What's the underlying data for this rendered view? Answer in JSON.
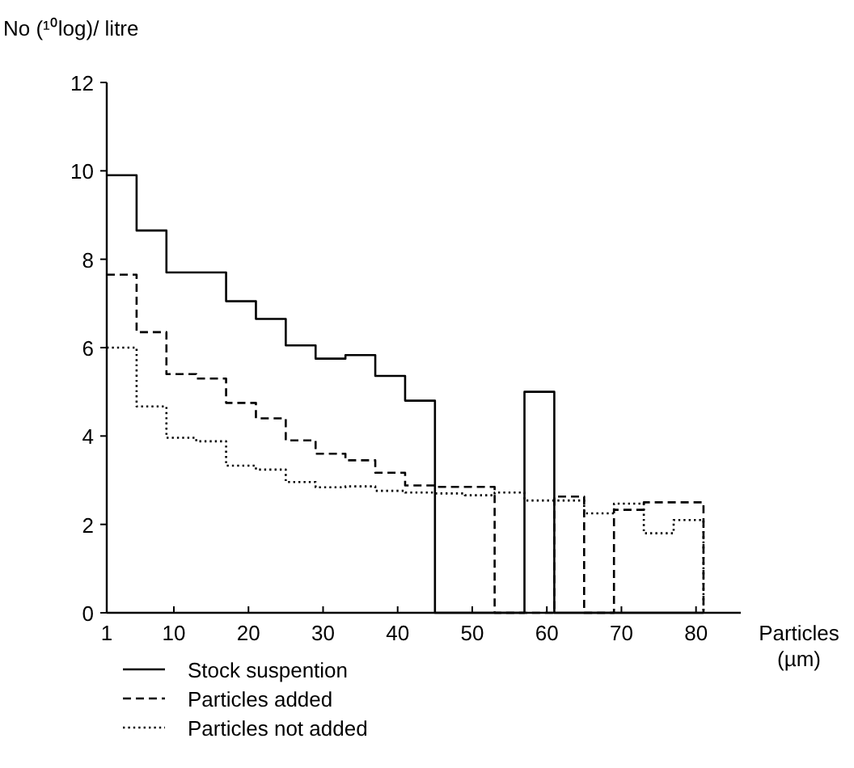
{
  "chart_data": {
    "type": "step",
    "ylabel": "No (¹⁰log)/ litre",
    "xlabel": "Particles (µm)",
    "x": [
      1,
      5,
      9,
      13,
      17,
      21,
      25,
      29,
      33,
      37,
      41,
      45,
      49,
      53,
      57,
      61,
      65,
      69,
      73,
      77,
      81
    ],
    "series": [
      {
        "name": "Stock suspention",
        "color": "#000000",
        "line_style": "solid",
        "values": [
          9.9,
          8.65,
          7.7,
          7.7,
          7.05,
          6.65,
          6.05,
          5.75,
          5.83,
          5.36,
          4.8,
          0,
          0,
          0,
          5.0,
          0,
          0,
          0,
          0,
          0,
          0
        ]
      },
      {
        "name": "Particles added",
        "color": "#000000",
        "line_style": "dashed",
        "values": [
          7.65,
          6.35,
          5.4,
          5.3,
          4.75,
          4.4,
          3.9,
          3.6,
          3.45,
          3.17,
          2.88,
          2.85,
          2.85,
          0,
          0,
          2.63,
          0,
          2.33,
          2.5,
          2.5,
          0
        ]
      },
      {
        "name": "Particles not added",
        "color": "#000000",
        "line_style": "dotted",
        "values": [
          6.0,
          4.67,
          3.96,
          3.88,
          3.33,
          3.24,
          2.96,
          2.84,
          2.86,
          2.76,
          2.72,
          2.7,
          2.66,
          2.72,
          2.54,
          2.54,
          2.25,
          2.47,
          1.8,
          2.1,
          0
        ]
      }
    ],
    "xlim": [
      1,
      86
    ],
    "xticks": [
      1,
      10,
      20,
      30,
      40,
      50,
      60,
      70,
      80
    ],
    "ylim": [
      0,
      12
    ],
    "yticks": [
      0,
      2,
      4,
      6,
      8,
      10,
      12
    ],
    "grid": false,
    "legend": "bottom left"
  }
}
